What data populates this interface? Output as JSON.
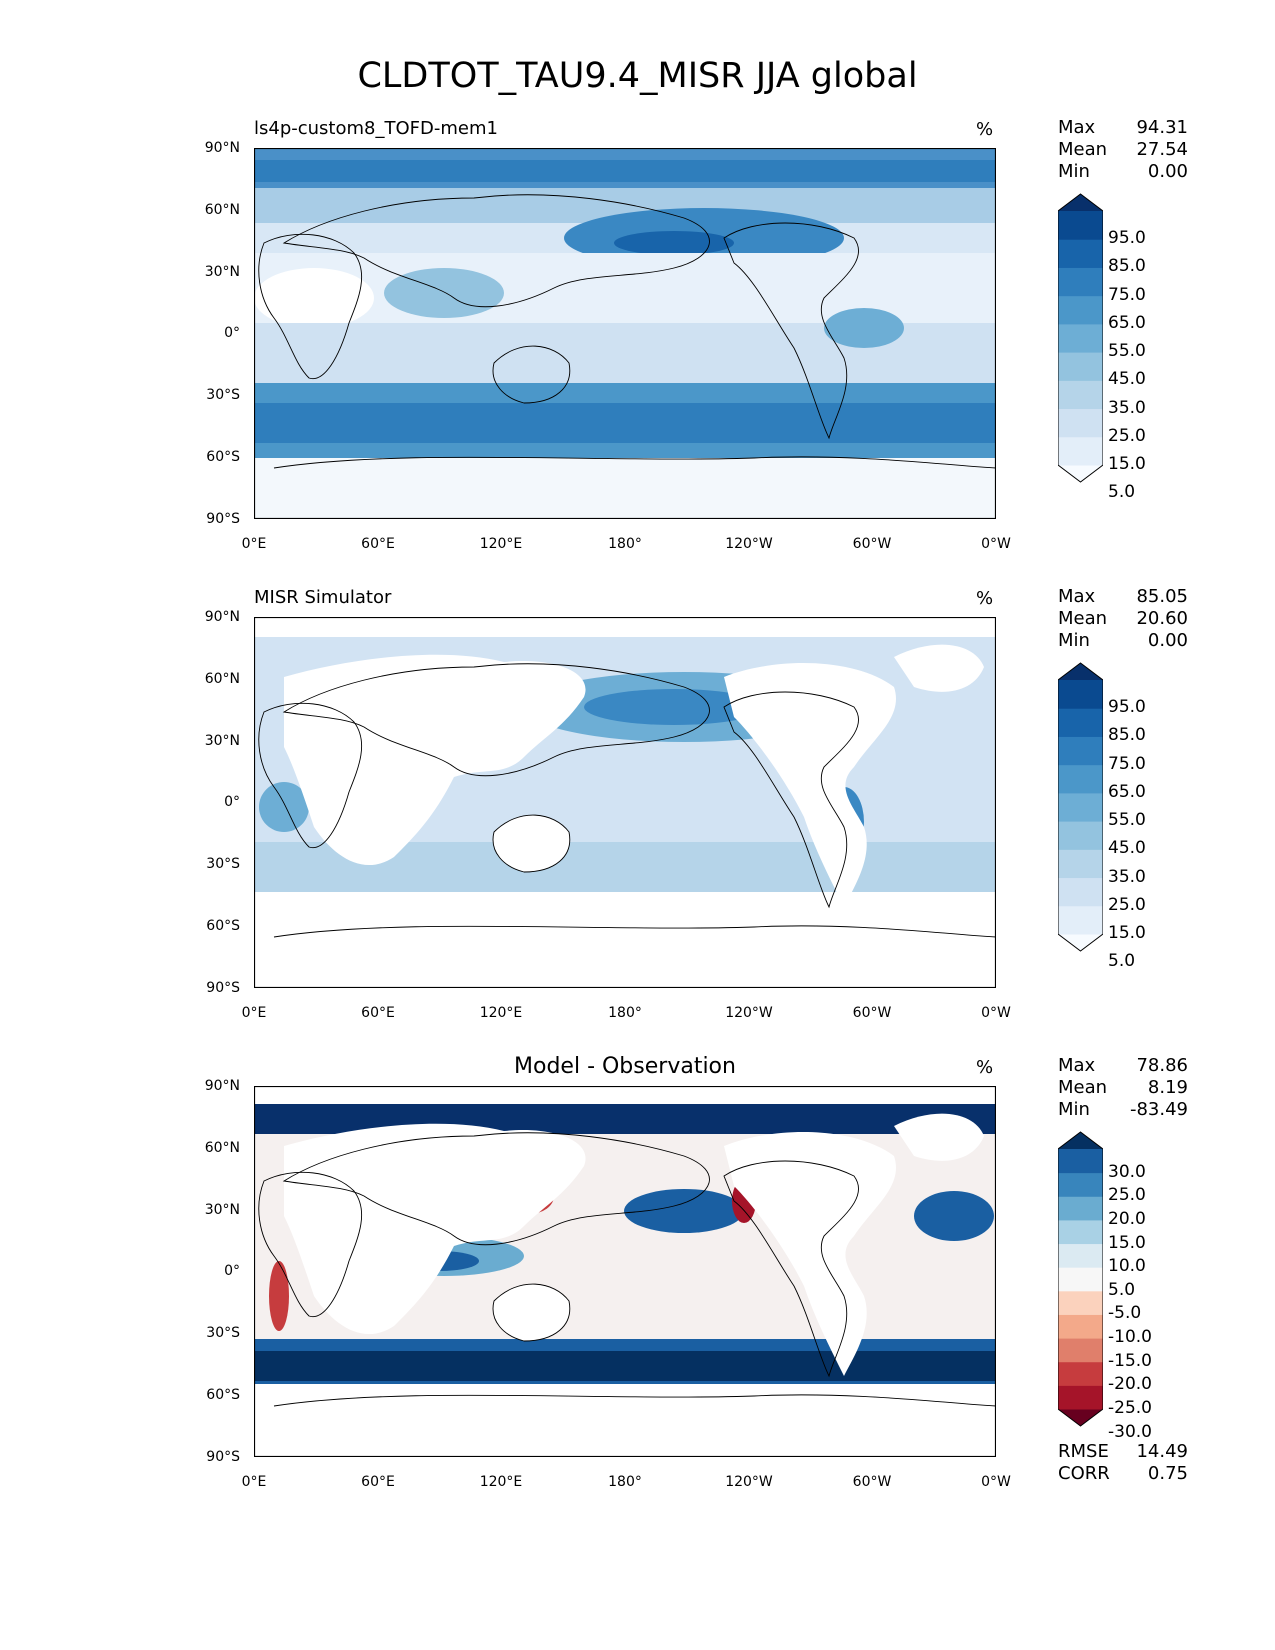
{
  "figure": {
    "title": "CLDTOT_TAU9.4_MISR JJA global"
  },
  "axes": {
    "lat_labels": [
      "90°N",
      "60°N",
      "30°N",
      "0°",
      "30°S",
      "60°S",
      "90°S"
    ],
    "lon_labels": [
      "0°E",
      "60°E",
      "120°E",
      "180°",
      "120°W",
      "60°W",
      "0°W"
    ]
  },
  "panels": [
    {
      "title": "ls4p-custom8_TOFD-mem1",
      "units": "%",
      "stats": {
        "max_label": "Max",
        "max": "94.31",
        "mean_label": "Mean",
        "mean": "27.54",
        "min_label": "Min",
        "min": "0.00"
      },
      "colorbar": {
        "ticks": [
          "95.0",
          "85.0",
          "75.0",
          "65.0",
          "55.0",
          "45.0",
          "35.0",
          "25.0",
          "15.0",
          "5.0"
        ],
        "colors": [
          "#f7fbff",
          "#e3eef9",
          "#cfe1f2",
          "#b5d4e9",
          "#93c3df",
          "#6daed5",
          "#4b97c9",
          "#2f7ebc",
          "#1864aa",
          "#0a4a90",
          "#08306b"
        ]
      }
    },
    {
      "title": "MISR Simulator",
      "units": "%",
      "stats": {
        "max_label": "Max",
        "max": "85.05",
        "mean_label": "Mean",
        "mean": "20.60",
        "min_label": "Min",
        "min": "0.00"
      },
      "colorbar": {
        "ticks": [
          "95.0",
          "85.0",
          "75.0",
          "65.0",
          "55.0",
          "45.0",
          "35.0",
          "25.0",
          "15.0",
          "5.0"
        ],
        "colors": [
          "#f7fbff",
          "#e3eef9",
          "#cfe1f2",
          "#b5d4e9",
          "#93c3df",
          "#6daed5",
          "#4b97c9",
          "#2f7ebc",
          "#1864aa",
          "#0a4a90",
          "#08306b"
        ]
      }
    },
    {
      "title": "Model - Observation",
      "units": "%",
      "stats": {
        "max_label": "Max",
        "max": "78.86",
        "mean_label": "Mean",
        "mean": "8.19",
        "min_label": "Min",
        "min": "-83.49"
      },
      "colorbar": {
        "ticks": [
          "30.0",
          "25.0",
          "20.0",
          "15.0",
          "10.0",
          "5.0",
          "-5.0",
          "-10.0",
          "-15.0",
          "-20.0",
          "-25.0",
          "-30.0"
        ],
        "colors": [
          "#67001f",
          "#a51429",
          "#c63c3e",
          "#e07f6b",
          "#f3a98a",
          "#fbd2bd",
          "#f7f7f7",
          "#dbeaf2",
          "#a9d1e5",
          "#6aacd0",
          "#3885bc",
          "#1a5fa2",
          "#053061"
        ]
      },
      "rmse_label": "RMSE",
      "rmse": "14.49",
      "corr_label": "CORR",
      "corr": "0.75"
    }
  ]
}
